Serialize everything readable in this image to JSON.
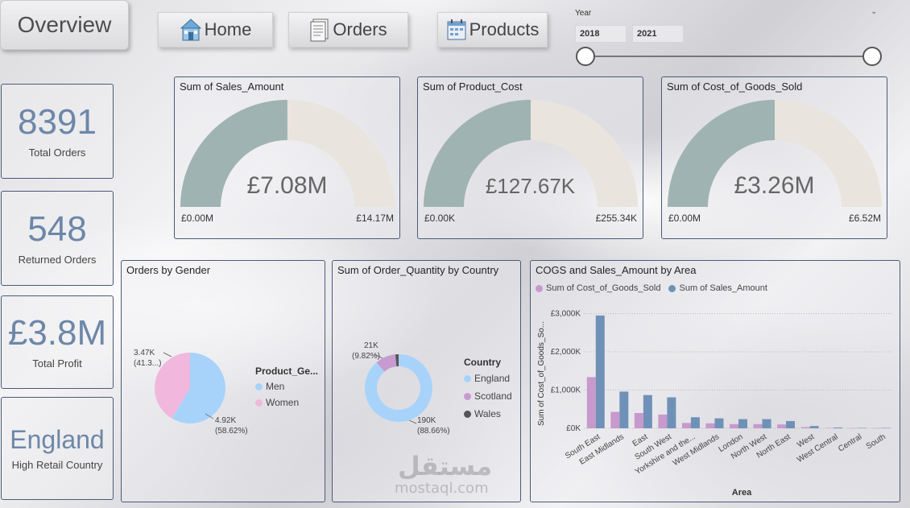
{
  "nav": {
    "overview_label": "Overview",
    "home_label": "Home",
    "orders_label": "Orders",
    "products_label": "Products"
  },
  "year_slicer": {
    "title": "Year",
    "start": "2018",
    "end": "2021"
  },
  "kpis": [
    {
      "value": "8391",
      "label": "Total Orders"
    },
    {
      "value": "548",
      "label": "Returned Orders"
    },
    {
      "value": "£3.8M",
      "label": "Total Profit"
    },
    {
      "value": "England",
      "label": "High Retail Country"
    }
  ],
  "gauges": [
    {
      "title": "Sum of Sales_Amount",
      "value_label": "£7.08M",
      "min_label": "£0.00M",
      "max_label": "£14.17M",
      "value": 7.08,
      "max": 14.17
    },
    {
      "title": "Sum of Product_Cost",
      "value_label": "£127.67K",
      "min_label": "£0.00K",
      "max_label": "£255.34K",
      "value": 127.67,
      "max": 255.34
    },
    {
      "title": "Sum of Cost_of_Goods_Sold",
      "value_label": "£3.26M",
      "min_label": "£0.00M",
      "max_label": "£6.52M",
      "value": 3.26,
      "max": 6.52
    }
  ],
  "gender_chart": {
    "title": "Orders by Gender",
    "legend_title": "Product_Ge...",
    "legend": [
      "Men",
      "Women"
    ],
    "women_label_1": "3.47K",
    "women_label_2": "(41.3...)",
    "men_label_1": "4.92K",
    "men_label_2": "(58.62%)"
  },
  "country_chart": {
    "title": "Sum of Order_Quantity by Country",
    "legend_title": "Country",
    "legend": [
      "England",
      "Scotland",
      "Wales"
    ],
    "scotland_label_1": "21K",
    "scotland_label_2": "(9.82%)",
    "england_label_1": "190K",
    "england_label_2": "(88.66%)"
  },
  "area_chart": {
    "title": "COGS and Sales_Amount by Area",
    "legend": [
      "Sum of Cost_of_Goods_Sold",
      "Sum of Sales_Amount"
    ],
    "xlabel": "Area",
    "ylabel": "Sum of Cost_of_Goods_So...",
    "y_ticks": [
      "£0K",
      "£1,000K",
      "£2,000K",
      "£3,000K"
    ]
  },
  "chart_data": [
    {
      "type": "pie",
      "title": "Orders by Gender",
      "categories": [
        "Men",
        "Women"
      ],
      "values": [
        4920,
        3470
      ],
      "percent": [
        58.62,
        41.38
      ]
    },
    {
      "type": "pie",
      "title": "Sum of Order_Quantity by Country",
      "categories": [
        "England",
        "Scotland",
        "Wales"
      ],
      "values": [
        190000,
        21000,
        3300
      ],
      "percent": [
        88.66,
        9.82,
        1.52
      ]
    },
    {
      "type": "bar",
      "title": "COGS and Sales_Amount by Area",
      "xlabel": "Area",
      "ylabel": "Sum of Cost_of_Goods_So...",
      "ylim": [
        0,
        3000
      ],
      "categories": [
        "South East",
        "East Midlands",
        "East",
        "South West",
        "Yorkshire and the...",
        "West Midlands",
        "London",
        "North West",
        "North East",
        "West",
        "West Central",
        "Central",
        "South"
      ],
      "series": [
        {
          "name": "Sum of Cost_of_Goods_Sold",
          "values": [
            1340,
            430,
            400,
            360,
            140,
            130,
            110,
            110,
            100,
            30,
            10,
            5,
            5
          ]
        },
        {
          "name": "Sum of Sales_Amount",
          "values": [
            2950,
            960,
            870,
            810,
            290,
            260,
            240,
            240,
            190,
            60,
            20,
            10,
            10
          ]
        }
      ]
    }
  ],
  "colors": {
    "gauge_fill": "#9fb3b2",
    "gauge_bg": "#e9e4de",
    "men": "#a7d3fb",
    "women": "#f2b7dd",
    "england": "#a7d3fb",
    "scotland": "#c79ad0",
    "wales": "#555555",
    "cogs": "#c899cc",
    "sales": "#6f91b8",
    "kpi_text": "#6d87a8"
  },
  "watermark": {
    "arabic": "مستقل",
    "latin": "mostaql.com"
  }
}
